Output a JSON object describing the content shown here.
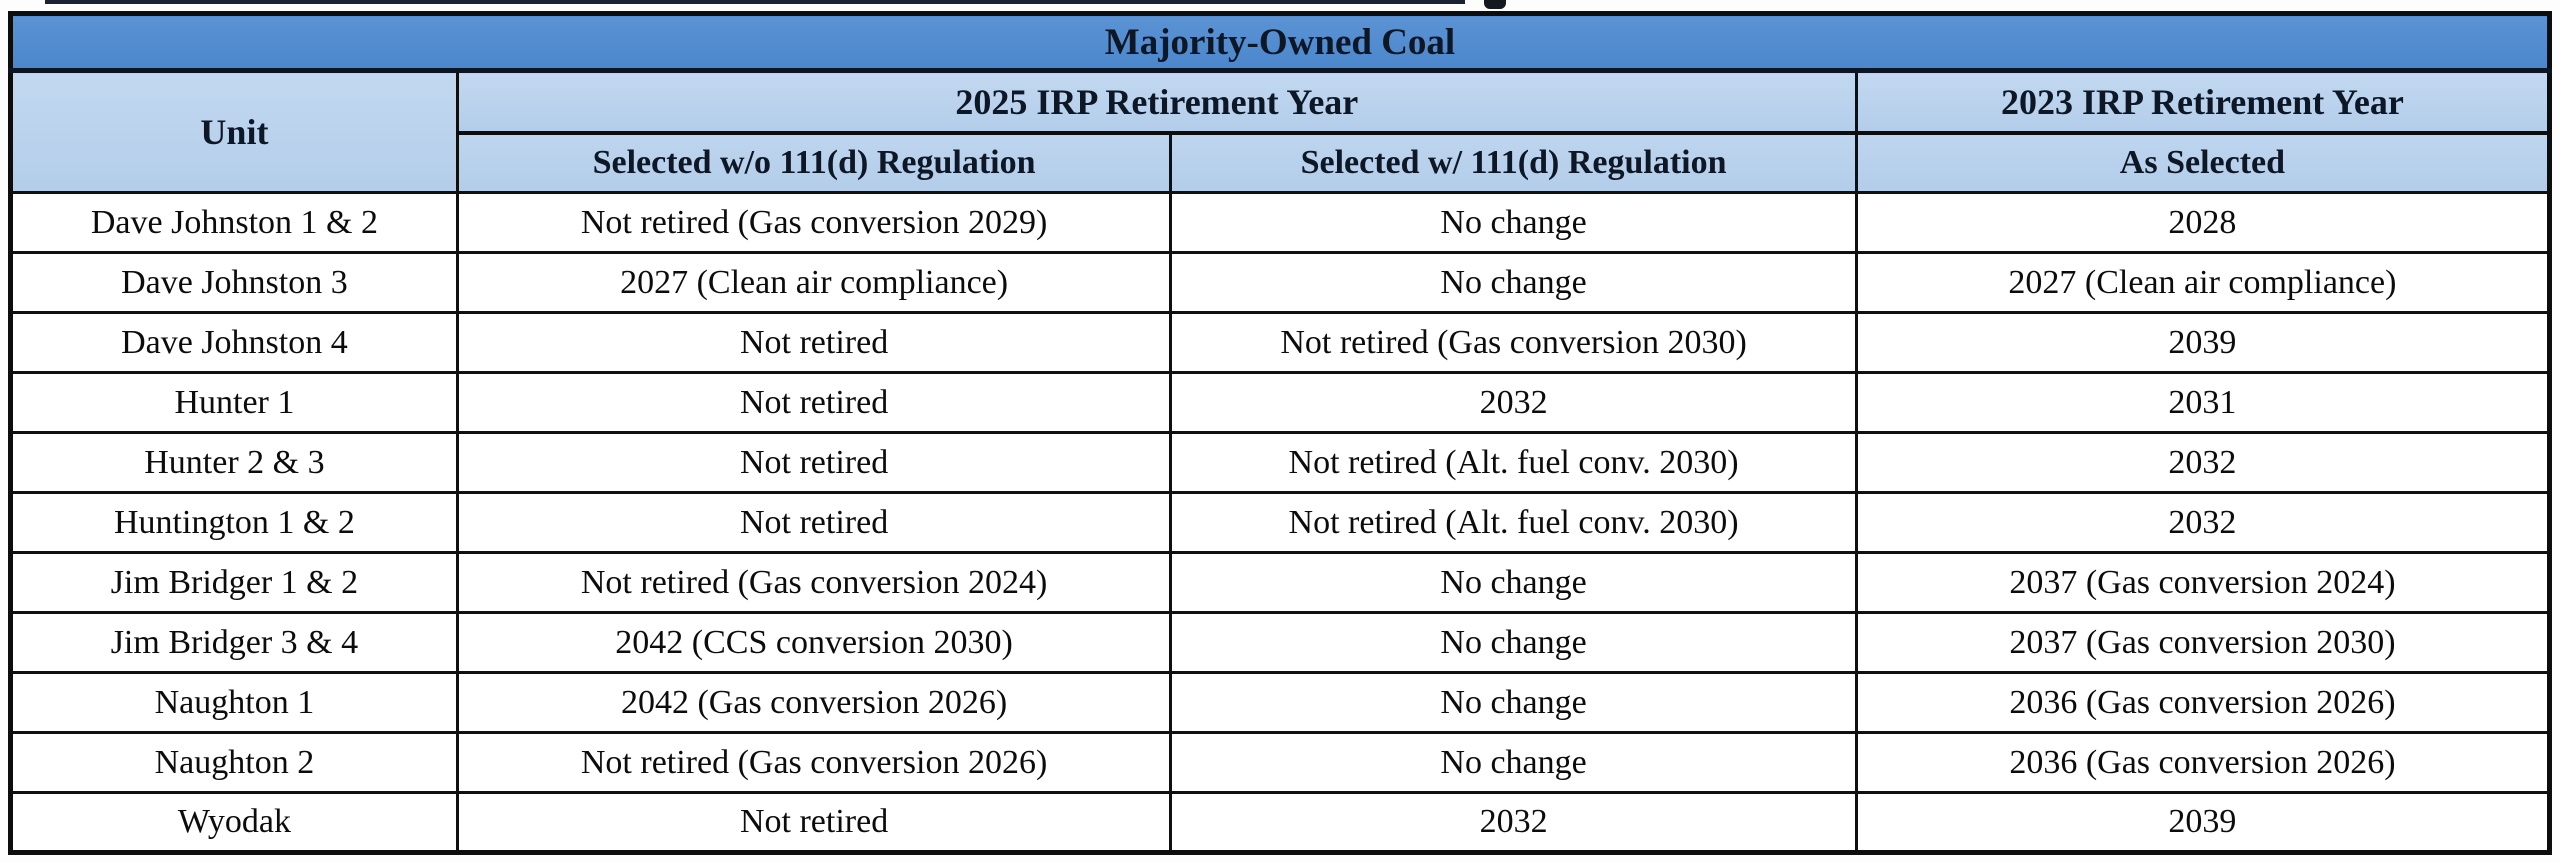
{
  "page": {
    "cropped_text_artifact": "descender of text line cut off above table"
  },
  "table": {
    "title": "Majority-Owned Coal",
    "headers": {
      "unit": "Unit",
      "group_2025": "2025 IRP Retirement Year",
      "group_2023": "2023 IRP Retirement Year",
      "sub_without": "Selected w/o 111(d) Regulation",
      "sub_with": "Selected w/ 111(d) Regulation",
      "sub_as_selected": "As Selected"
    },
    "rows": [
      [
        "Dave Johnston 1 & 2",
        "Not retired (Gas conversion 2029)",
        "No change",
        "2028"
      ],
      [
        "Dave Johnston 3",
        "2027 (Clean air compliance)",
        "No change",
        "2027 (Clean air compliance)"
      ],
      [
        "Dave Johnston 4",
        "Not retired",
        "Not retired (Gas conversion 2030)",
        "2039"
      ],
      [
        "Hunter 1",
        "Not retired",
        "2032",
        "2031"
      ],
      [
        "Hunter 2 & 3",
        "Not retired",
        "Not retired (Alt. fuel conv. 2030)",
        "2032"
      ],
      [
        "Huntington 1 & 2",
        "Not retired",
        "Not retired (Alt. fuel conv. 2030)",
        "2032"
      ],
      [
        "Jim Bridger 1 & 2",
        "Not retired (Gas conversion 2024)",
        "No change",
        "2037 (Gas conversion 2024)"
      ],
      [
        "Jim Bridger 3 & 4",
        "2042 (CCS conversion 2030)",
        "No change",
        "2037 (Gas conversion 2030)"
      ],
      [
        "Naughton 1",
        "2042 (Gas conversion 2026)",
        "No change",
        "2036 (Gas conversion 2026)"
      ],
      [
        "Naughton 2",
        "Not retired (Gas conversion 2026)",
        "No change",
        "2036 (Gas conversion 2026)"
      ],
      [
        "Wyodak",
        "Not retired",
        "2032",
        "2039"
      ]
    ],
    "colors": {
      "title_bg": "#4b87cc",
      "title_bg_light": "#5b93d4",
      "subheader_bg": "#b3cdea",
      "header_text": "#0d1726",
      "data_text": "#0c0c0c",
      "border": "#101010"
    }
  }
}
